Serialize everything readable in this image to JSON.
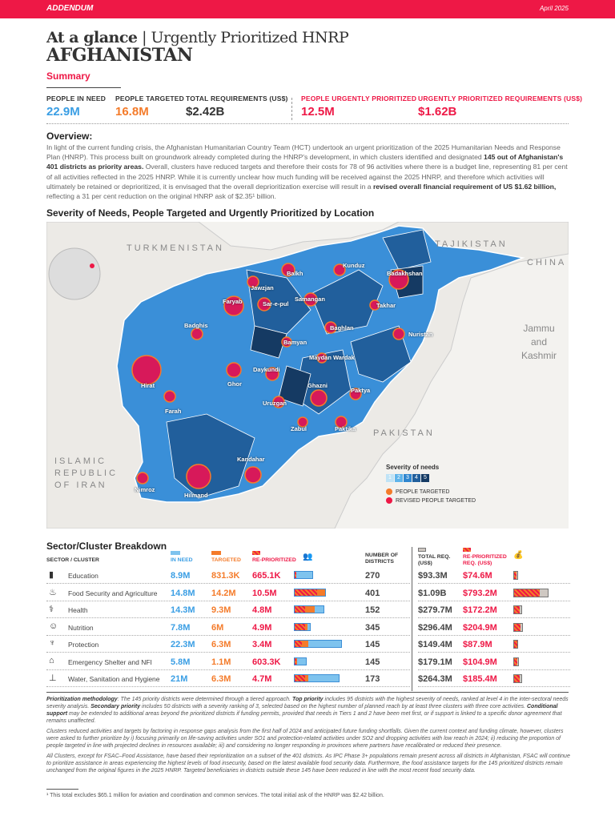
{
  "header": {
    "label": "ADDENDUM",
    "date": "April 2025",
    "title_bold": "At a glance",
    "title_sep": "|",
    "title_rest": "Urgently Prioritized HNRP",
    "country": "AFGHANISTAN"
  },
  "colors": {
    "accent": "#ee1846",
    "in_need": "#3a9ee4",
    "targeted": "#f47b2a"
  },
  "summary": {
    "heading": "Summary",
    "kpis": [
      {
        "label": "PEOPLE IN NEED",
        "value": "22.9M"
      },
      {
        "label": "PEOPLE TARGETED",
        "value": "16.8M"
      },
      {
        "label": "TOTAL REQUIREMENTS (US$)",
        "value": "$2.42B"
      },
      {
        "label": "PEOPLE URGENTLY PRIORITIZED",
        "value": "12.5M"
      },
      {
        "label": "URGENTLY PRIORITIZED REQUIREMENTS (US$)",
        "value": "$1.62B"
      }
    ]
  },
  "overview": {
    "heading": "Overview:",
    "p1": "In light of the current funding crisis, the Afghanistan Humanitarian Country Team (HCT) undertook an urgent prioritization of the 2025 Humanitarian Needs and Response Plan (HNRP). This process built on groundwork already completed during the HNRP's development, in which clusters identified and designated ",
    "b1": "145 out of Afghanistan's 401 districts as priority areas.",
    "p2": " Overall, clusters have reduced targets and therefore their costs for 78 of 96 activities where there is a budget line, representing 81 per cent of all activities reflected in the 2025 HNRP. While it is currently unclear how much funding will be received against the 2025 HNRP, and therefore which activities will ultimately be retained or deprioritized, it is envisaged that the overall deprioritization exercise will result in a ",
    "b2": "revised overall financial requirement of US $1.62 billion,",
    "p3": " reflecting a 31 per cent reduction on the original HNRP ask of $2.35¹ billion."
  },
  "map": {
    "heading": "Severity of Needs, People Targeted and Urgently Prioritized by Location",
    "countries": [
      "TURKMENISTAN",
      "TAJIKISTAN",
      "CHINA",
      "Jammu and Kashmir",
      "PAKISTAN",
      "ISLAMIC REPUBLIC OF IRAN"
    ],
    "provinces": [
      "Balkh",
      "Kunduz",
      "Badakhshan",
      "Jawzjan",
      "Samangan",
      "Takhar",
      "Sar-e-pul",
      "Faryab",
      "Baghlan",
      "Nuristan",
      "Badghis",
      "Bamyan",
      "Maydan Wardak",
      "Hirat",
      "Ghor",
      "Daykundi",
      "Ghazni",
      "Paktya",
      "Uruzgan",
      "Farah",
      "Zabul",
      "Paktika",
      "Kandahar",
      "Nimroz",
      "Hilmand"
    ],
    "legend": {
      "title": "Severity of needs",
      "levels": [
        "1",
        "2",
        "3",
        "4",
        "5"
      ],
      "level_colors": [
        "#bfe3f6",
        "#5fb4ea",
        "#2f86cf",
        "#215f9c",
        "#153a63"
      ],
      "targeted": "PEOPLE TARGETED",
      "revised": "REVISED PEOPLE TARGETED"
    }
  },
  "table": {
    "heading": "Sector/Cluster Breakdown",
    "cols": {
      "sector": "SECTOR / CLUSTER",
      "in_need": "IN NEED",
      "targeted": "TARGETED",
      "repri": "RE-PRIORITIZED",
      "districts": "NUMBER OF DISTRICTS",
      "total_req": "TOTAL REQ. (US$)",
      "repri_req": "RE-PRIORITIZED REQ. (US$)"
    },
    "rows": [
      {
        "icon": "education-icon",
        "name": "Education",
        "in_need": "8.9M",
        "targeted": "831.3K",
        "repri": "665.1K",
        "districts": "270",
        "total": "$93.3M",
        "repri_req": "$74.6M",
        "v": [
          8.9,
          0.8313,
          0.6651,
          93.3,
          74.6
        ]
      },
      {
        "icon": "food-icon",
        "name": "Food Security and Agriculture",
        "in_need": "14.8M",
        "targeted": "14.2M",
        "repri": "10.5M",
        "districts": "401",
        "total": "$1.09B",
        "repri_req": "$793.2M",
        "v": [
          14.8,
          14.2,
          10.5,
          1090,
          793.2
        ]
      },
      {
        "icon": "health-icon",
        "name": "Health",
        "in_need": "14.3M",
        "targeted": "9.3M",
        "repri": "4.8M",
        "districts": "152",
        "total": "$279.7M",
        "repri_req": "$172.2M",
        "v": [
          14.3,
          9.3,
          4.8,
          279.7,
          172.2
        ]
      },
      {
        "icon": "nutrition-icon",
        "name": "Nutrition",
        "in_need": "7.8M",
        "targeted": "6M",
        "repri": "4.9M",
        "districts": "345",
        "total": "$296.4M",
        "repri_req": "$204.9M",
        "v": [
          7.8,
          6,
          4.9,
          296.4,
          204.9
        ]
      },
      {
        "icon": "protection-icon",
        "name": "Protection",
        "in_need": "22.3M",
        "targeted": "6.3M",
        "repri": "3.4M",
        "districts": "145",
        "total": "$149.4M",
        "repri_req": "$87.9M",
        "v": [
          22.3,
          6.3,
          3.4,
          149.4,
          87.9
        ]
      },
      {
        "icon": "shelter-icon",
        "name": "Emergency Shelter and NFI",
        "in_need": "5.8M",
        "targeted": "1.1M",
        "repri": "603.3K",
        "districts": "145",
        "total": "$179.1M",
        "repri_req": "$104.9M",
        "v": [
          5.8,
          1.1,
          0.6033,
          179.1,
          104.9
        ]
      },
      {
        "icon": "water-icon",
        "name": "Water, Sanitation and Hygiene",
        "in_need": "21M",
        "targeted": "6.3M",
        "repri": "4.7M",
        "districts": "173",
        "total": "$264.3M",
        "repri_req": "$185.4M",
        "v": [
          21,
          6.3,
          4.7,
          264.3,
          185.4
        ]
      }
    ]
  },
  "footer": {
    "m_b": "Prioritization methodology",
    "m1": ": The 145 priority districts were determined through a tiered approach. ",
    "t_b": "Top priority",
    "m2": " includes 95 districts with the highest severity of needs, ranked at level 4 in the inter-sectoral needs severity analysis. ",
    "s_b": "Secondary priority",
    "m3": " includes 50 districts with a severity ranking of 3, selected based on the highest number of planned reach by at least three clusters with three core activities. ",
    "c_b": "Conditional support",
    "m4": " may be extended to additional areas beyond the prioritized districts if funding permits, provided that needs in Tiers 1 and 2 have been met first, or if support is linked to a specific donor agreement that remains unaffected.",
    "p2": "Clusters reduced activities and targets by factoring in response gaps analysis from the first half of 2024 and anticipated future funding shortfalls. Given the current context and funding climate, however, clusters were asked to further prioritize by i) focusing primarily on life-saving activities under SO1 and protection-related activities under SO2 and dropping activities with low reach in 2024; ii) reducing the proportion of people targeted in line with projected declines in resources available; iii) and considering no longer responding in provinces where partners have recalibrated or reduced their presence.",
    "p3": "All Clusters, except for FSAC–Food Assistance, have based their reprioritization on a subset of the 401 districts. As IPC Phase 3+ populations remain present across all districts in Afghanistan, FSAC will continue to prioritize assistance in areas experiencing the highest levels of food insecurity, based on the latest available food security data. Furthermore, the food assistance targets for the 145 prioritized districts remain unchanged from the original figures in the 2025 HNRP. Targeted beneficiaries in districts outside these 145 have been reduced in line with the most recent food security data.",
    "footnote": "¹ This total excludes $65.1 million for aviation and coordination and common services. The total initial ask of the HNRP was $2.42 billion."
  }
}
